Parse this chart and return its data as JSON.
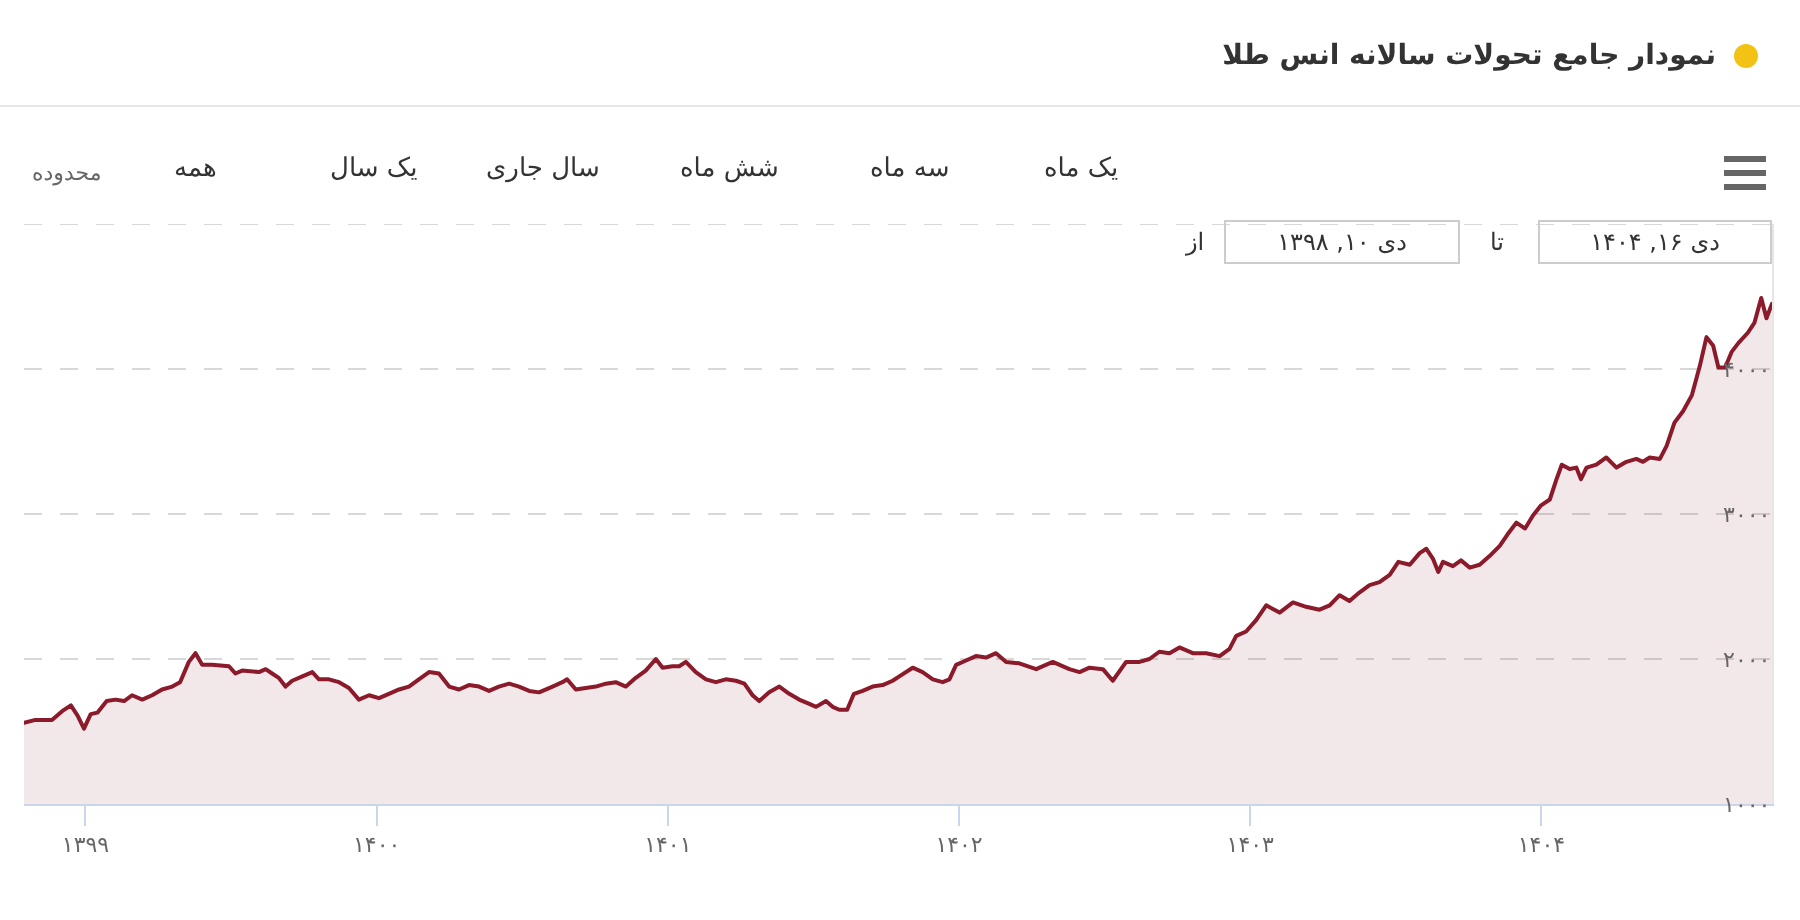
{
  "chart_data": {
    "type": "area",
    "title": "نمودار جامع تحولات سالانه انس طلا",
    "annotations": [
      "محدوده",
      "همه",
      "یک سال",
      "سال جاری",
      "شش ماه",
      "سه ماه",
      "یک ماه",
      "از",
      "دی ۱۰, ۱۳۹۸",
      "تا",
      "دی ۱۶, ۱۴۰۴"
    ],
    "x": [
      1398.789,
      1398.828,
      1398.863,
      1398.885,
      1398.92,
      1398.95,
      1398.973,
      1398.995,
      1399.018,
      1399.041,
      1399.073,
      1399.103,
      1399.133,
      1399.16,
      1399.195,
      1399.229,
      1399.263,
      1399.298,
      1399.325,
      1399.355,
      1399.378,
      1399.401,
      1399.435,
      1399.493,
      1399.515,
      1399.538,
      1399.596,
      1399.619,
      1399.641,
      1399.664,
      1399.687,
      1399.71,
      1399.745,
      1399.779,
      1399.802,
      1399.836,
      1399.871,
      1399.905,
      1399.939,
      1399.974,
      1400.008,
      1400.042,
      1400.077,
      1400.111,
      1400.145,
      1400.18,
      1400.214,
      1400.249,
      1400.283,
      1400.317,
      1400.352,
      1400.386,
      1400.42,
      1400.455,
      1400.489,
      1400.524,
      1400.558,
      1400.604,
      1400.638,
      1400.654,
      1400.684,
      1400.718,
      1400.753,
      1400.787,
      1400.821,
      1400.856,
      1400.89,
      1400.924,
      1400.959,
      1400.982,
      1401.016,
      1401.039,
      1401.062,
      1401.096,
      1401.131,
      1401.165,
      1401.199,
      1401.234,
      1401.263,
      1401.291,
      1401.314,
      1401.348,
      1401.383,
      1401.417,
      1401.451,
      1401.486,
      1401.509,
      1401.543,
      1401.566,
      1401.589,
      1401.616,
      1401.639,
      1401.669,
      1401.703,
      1401.738,
      1401.772,
      1401.795,
      1401.841,
      1401.875,
      1401.91,
      1401.944,
      1401.967,
      1401.99,
      1402.024,
      1402.058,
      1402.093,
      1402.127,
      1402.162,
      1402.207,
      1402.265,
      1402.322,
      1402.379,
      1402.414,
      1402.448,
      1402.494,
      1402.528,
      1402.574,
      1402.62,
      1402.654,
      1402.688,
      1402.723,
      1402.757,
      1402.803,
      1402.849,
      1402.895,
      1402.929,
      1402.952,
      1402.986,
      1403.021,
      1403.055,
      1403.101,
      1403.147,
      1403.192,
      1403.238,
      1403.273,
      1403.307,
      1403.341,
      1403.376,
      1403.41,
      1403.444,
      1403.479,
      1403.509,
      1403.548,
      1403.582,
      1403.605,
      1403.628,
      1403.646,
      1403.662,
      1403.696,
      1403.724,
      1403.754,
      1403.788,
      1403.822,
      1403.857,
      1403.884,
      1403.914,
      1403.944,
      1403.971,
      1403.999,
      1404.029,
      1404.052,
      1404.07,
      1404.097,
      1404.12,
      1404.136,
      1404.155,
      1404.189,
      1404.223,
      1404.258,
      1404.292,
      1404.326,
      1404.349,
      1404.372,
      1404.407,
      1404.43,
      1404.457,
      1404.487,
      1404.517,
      1404.544,
      1404.567,
      1404.59,
      1404.608,
      1404.631,
      1404.654,
      1404.677,
      1404.709,
      1404.732,
      1404.755,
      1404.773,
      1404.792
    ],
    "series": [
      {
        "color": "#8b1a2b",
        "values": [
          1560,
          1580,
          1580,
          1580,
          1640,
          1680,
          1610,
          1520,
          1620,
          1630,
          1710,
          1720,
          1710,
          1750,
          1720,
          1750,
          1790,
          1810,
          1840,
          1980,
          2040,
          1960,
          1960,
          1950,
          1900,
          1920,
          1910,
          1930,
          1900,
          1870,
          1810,
          1850,
          1880,
          1910,
          1860,
          1860,
          1840,
          1800,
          1720,
          1750,
          1730,
          1760,
          1790,
          1810,
          1860,
          1910,
          1900,
          1810,
          1790,
          1820,
          1810,
          1780,
          1810,
          1830,
          1810,
          1780,
          1770,
          1810,
          1840,
          1860,
          1790,
          1800,
          1810,
          1830,
          1840,
          1810,
          1870,
          1920,
          2000,
          1940,
          1950,
          1950,
          1980,
          1910,
          1860,
          1840,
          1860,
          1850,
          1830,
          1750,
          1710,
          1770,
          1810,
          1760,
          1720,
          1690,
          1670,
          1710,
          1670,
          1650,
          1650,
          1760,
          1780,
          1810,
          1820,
          1850,
          1880,
          1940,
          1910,
          1860,
          1840,
          1860,
          1960,
          1990,
          2020,
          2010,
          2040,
          1980,
          1970,
          1930,
          1980,
          1930,
          1910,
          1940,
          1930,
          1850,
          1980,
          1980,
          2000,
          2050,
          2040,
          2080,
          2040,
          2040,
          2020,
          2070,
          2160,
          2190,
          2270,
          2370,
          2320,
          2390,
          2360,
          2340,
          2370,
          2440,
          2400,
          2460,
          2510,
          2530,
          2580,
          2670,
          2650,
          2730,
          2760,
          2690,
          2600,
          2670,
          2640,
          2680,
          2630,
          2650,
          2710,
          2780,
          2860,
          2940,
          2900,
          2990,
          3060,
          3100,
          3240,
          3340,
          3310,
          3320,
          3240,
          3320,
          3340,
          3390,
          3320,
          3360,
          3380,
          3360,
          3390,
          3380,
          3470,
          3630,
          3710,
          3820,
          4020,
          4220,
          4160,
          4010,
          4010,
          4120,
          4180,
          4250,
          4320,
          4490,
          4350,
          4450
        ]
      }
    ],
    "xlim": [
      1398.789,
      1404.792
    ],
    "xticks": [
      {
        "value": 1399,
        "label": "۱۳۹۹"
      },
      {
        "value": 1400,
        "label": "۱۴۰۰"
      },
      {
        "value": 1401,
        "label": "۱۴۰۱"
      },
      {
        "value": 1402,
        "label": "۱۴۰۲"
      },
      {
        "value": 1403,
        "label": "۱۴۰۳"
      },
      {
        "value": 1404,
        "label": "۱۴۰۴"
      }
    ],
    "ylim": [
      1000,
      5000
    ],
    "yticks": [
      {
        "value": 1000,
        "label": "۱۰۰۰"
      },
      {
        "value": 2000,
        "label": "۲۰۰۰"
      },
      {
        "value": 3000,
        "label": "۳۰۰۰"
      },
      {
        "value": 4000,
        "label": "۴۰۰۰"
      },
      {
        "value": 5000,
        "label": null
      }
    ],
    "grid": "y"
  }
}
